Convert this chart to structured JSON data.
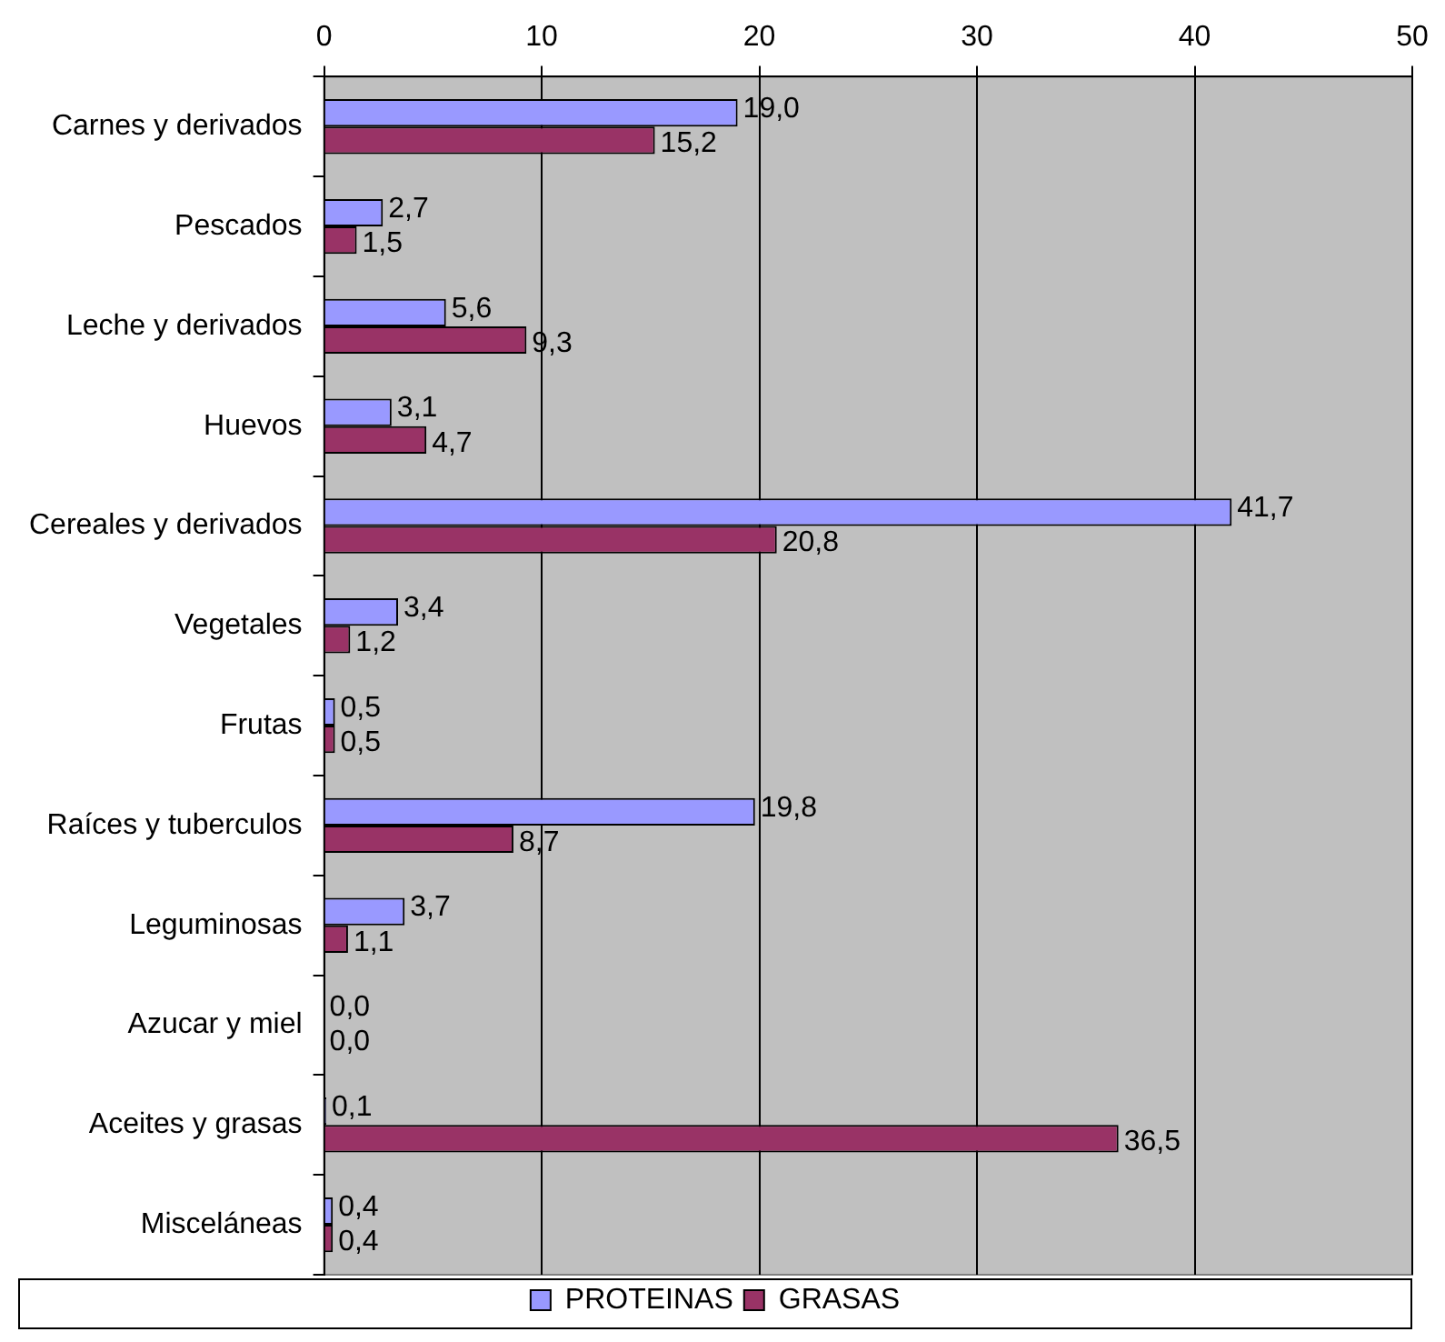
{
  "chart_data": {
    "type": "bar",
    "orientation": "horizontal",
    "categories": [
      "Carnes y derivados",
      "Pescados",
      "Leche y derivados",
      "Huevos",
      "Cereales y derivados",
      "Vegetales",
      "Frutas",
      "Raíces y tuberculos",
      "Leguminosas",
      "Azucar y miel",
      "Aceites y grasas",
      "Misceláneas"
    ],
    "series": [
      {
        "name": "PROTEINAS",
        "color": "#9999ff",
        "values": [
          19.0,
          2.7,
          5.6,
          3.1,
          41.7,
          3.4,
          0.5,
          19.8,
          3.7,
          0.0,
          0.1,
          0.4
        ],
        "value_labels": [
          "19,0",
          "2,7",
          "5,6",
          "3,1",
          "41,7",
          "3,4",
          "0,5",
          "19,8",
          "3,7",
          "0,0",
          "0,1",
          "0,4"
        ]
      },
      {
        "name": "GRASAS",
        "color": "#993366",
        "values": [
          15.2,
          1.5,
          9.3,
          4.7,
          20.8,
          1.2,
          0.5,
          8.7,
          1.1,
          0.0,
          36.5,
          0.4
        ],
        "value_labels": [
          "15,2",
          "1,5",
          "9,3",
          "4,7",
          "20,8",
          "1,2",
          "0,5",
          "8,7",
          "1,1",
          "0,0",
          "36,5",
          "0,4"
        ]
      }
    ],
    "xlim": [
      0,
      50
    ],
    "xticks": [
      0,
      10,
      20,
      30,
      40,
      50
    ],
    "grid": "x",
    "legend": "bottom"
  }
}
